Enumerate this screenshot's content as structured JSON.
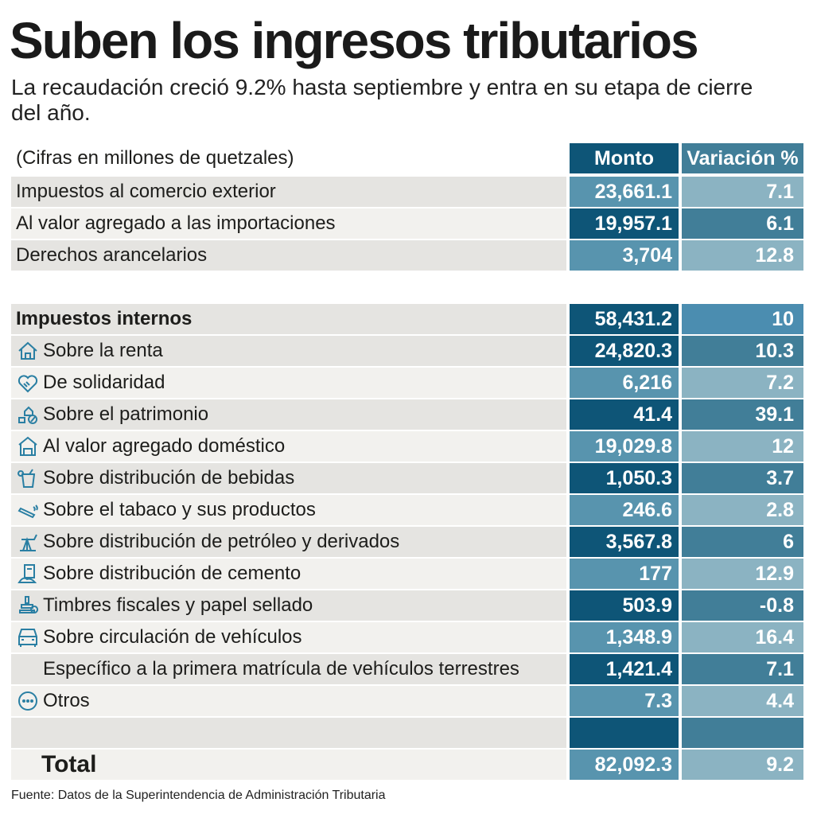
{
  "title": "Suben los ingresos tributarios",
  "subtitle": "La recaudación creció 9.2% hasta septiembre y entra en su etapa de cierre del año.",
  "table": {
    "units": "(Cifras en millones de quetzales)",
    "col_monto": "Monto",
    "col_var": "Variación %",
    "comercio": [
      {
        "label": "Impuestos al comercio exterior",
        "monto": "23,661.1",
        "var": "7.1"
      },
      {
        "label": "Al valor agregado a las importaciones",
        "monto": "19,957.1",
        "var": "6.1"
      },
      {
        "label": "Derechos arancelarios",
        "monto": "3,704",
        "var": "12.8"
      }
    ],
    "internos": {
      "label": "Impuestos internos",
      "monto": "58,431.2",
      "var": "10"
    },
    "items": [
      {
        "label": "Sobre la renta",
        "monto": "24,820.3",
        "var": "10.3",
        "icon": "house-icon"
      },
      {
        "label": "De solidaridad",
        "monto": "6,216",
        "var": "7.2",
        "icon": "handshake-heart-icon"
      },
      {
        "label": "Sobre el patrimonio",
        "monto": "41.4",
        "var": "39.1",
        "icon": "property-percent-icon"
      },
      {
        "label": "Al valor agregado doméstico",
        "monto": "19,029.8",
        "var": "12",
        "icon": "store-icon"
      },
      {
        "label": "Sobre distribución de bebidas",
        "monto": "1,050.3",
        "var": "3.7",
        "icon": "drink-icon"
      },
      {
        "label": "Sobre el tabaco y sus productos",
        "monto": "246.6",
        "var": "2.8",
        "icon": "cigarette-icon"
      },
      {
        "label": "Sobre distribución de petróleo y derivados",
        "monto": "3,567.8",
        "var": "6",
        "icon": "oil-pump-icon"
      },
      {
        "label": "Sobre distribución de cemento",
        "monto": "177",
        "var": "12.9",
        "icon": "cement-bag-icon"
      },
      {
        "label": "Timbres fiscales y papel sellado",
        "monto": "503.9",
        "var": "-0.8",
        "icon": "stamp-icon"
      },
      {
        "label": "Sobre circulación de vehículos",
        "monto": "1,348.9",
        "var": "16.4",
        "icon": "car-icon"
      },
      {
        "label": "Específico a la primera matrícula de vehículos terrestres",
        "monto": "1,421.4",
        "var": "7.1",
        "icon": ""
      },
      {
        "label": "Otros",
        "monto": "7.3",
        "var": "4.4",
        "icon": "more-icon"
      }
    ],
    "total": {
      "label": "Total",
      "monto": "82,092.3",
      "var": "9.2"
    }
  },
  "source": "Fuente:  Datos de la Superintendencia de Administración Tributaria",
  "colors": {
    "dark": "#0e5577",
    "medium": "#5894ae",
    "var_dark": "#417e98",
    "light": "#8bb3c2",
    "icon": "#2a7fa3"
  }
}
